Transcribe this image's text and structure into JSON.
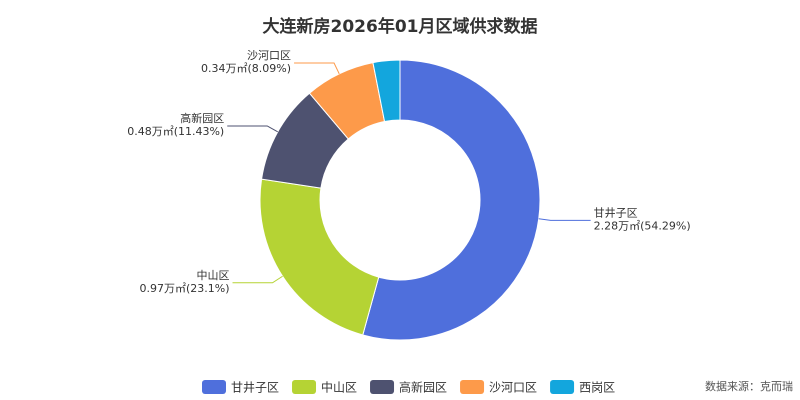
{
  "chart_data": {
    "type": "donut",
    "title": "大连新房2026年01月区域供求数据",
    "categories": [
      "甘井子区",
      "中山区",
      "高新园区",
      "沙河口区",
      "西岗区"
    ],
    "values": [
      2.28,
      0.97,
      0.48,
      0.34,
      0.13
    ],
    "value_labels": [
      "2.28万㎡(54.29%)",
      "0.97万㎡(23.1%)",
      "0.48万㎡(11.43%)",
      "0.34万㎡(8.09%)",
      null
    ],
    "colors": [
      "#4f6fdc",
      "#b5d334",
      "#4e5270",
      "#fd9a4a",
      "#13a6dd"
    ],
    "legend": "bottom",
    "source": "数据来源：克而瑞"
  }
}
